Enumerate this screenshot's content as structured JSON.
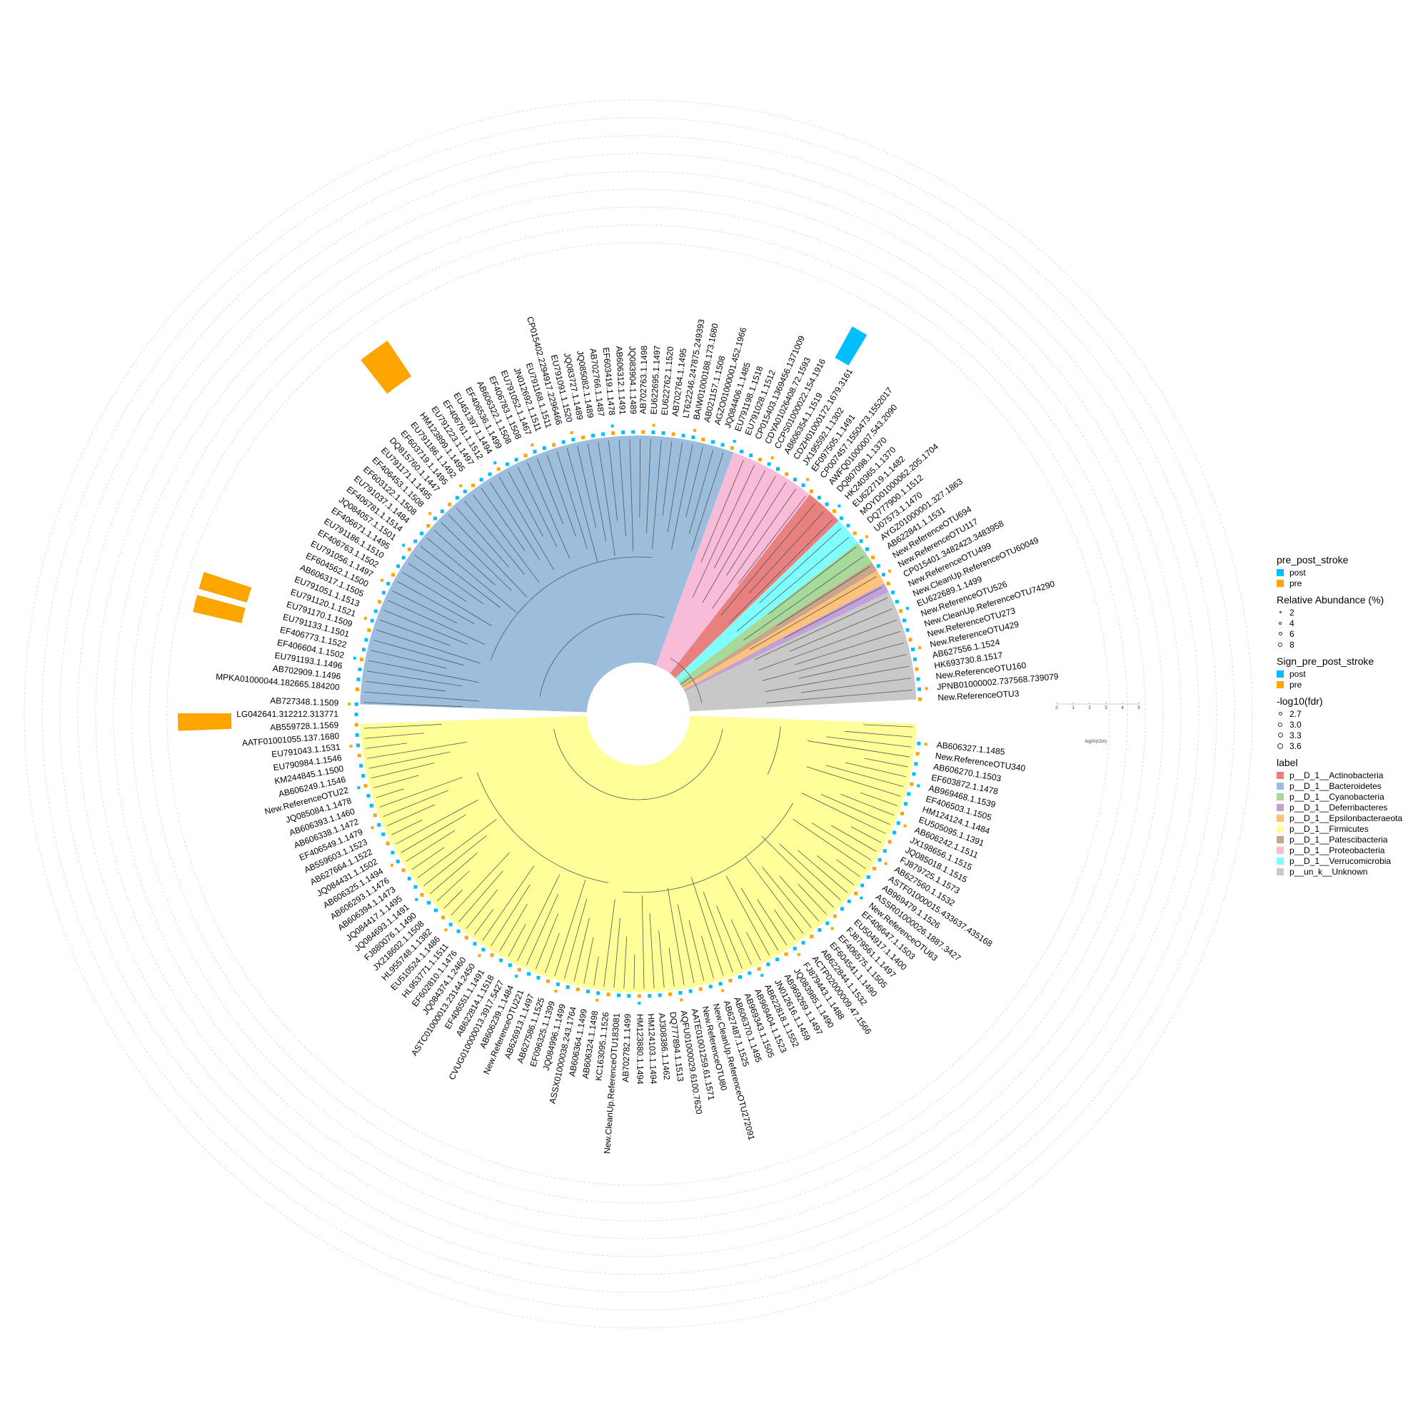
{
  "legend": {
    "group_title": "pre_post_stroke",
    "group_items": [
      {
        "label": "post",
        "color": "#00BFFF"
      },
      {
        "label": "pre",
        "color": "#FFA500"
      }
    ],
    "abundance_title": "Relative Abundance (%)",
    "abundance_items": [
      "2",
      "4",
      "6",
      "8"
    ],
    "sign_title": "Sign_pre_post_stroke",
    "sign_items": [
      {
        "label": "post",
        "color": "#00BFFF"
      },
      {
        "label": "pre",
        "color": "#FFA500"
      }
    ],
    "fdr_title": "-log10(fdr)",
    "fdr_items": [
      "2.7",
      "3.0",
      "3.3",
      "3.6"
    ],
    "label_title": "label",
    "label_items": [
      {
        "label": "p__D_1__Actinobacteria",
        "color": "#E88080"
      },
      {
        "label": "p__D_1__Bacteroidetes",
        "color": "#9CBEDC"
      },
      {
        "label": "p__D_1__Cyanobacteria",
        "color": "#A6D99A"
      },
      {
        "label": "p__D_1__Deferribacteres",
        "color": "#C3A1D6"
      },
      {
        "label": "p__D_1__Epsilonbacteraeota",
        "color": "#FFC27A"
      },
      {
        "label": "p__D_1__Firmicutes",
        "color": "#FFFF99"
      },
      {
        "label": "p__D_1__Patescibacteria",
        "color": "#C9A58A"
      },
      {
        "label": "p__D_1__Proteobacteria",
        "color": "#F8BBD8"
      },
      {
        "label": "p__D_1__Verrucomicrobia",
        "color": "#80FFFF"
      },
      {
        "label": "p__un_k__Unknown",
        "color": "#C8C8C8"
      }
    ]
  },
  "lda_axis": {
    "ticks": [
      "0",
      "1",
      "2",
      "3",
      "4",
      "5"
    ],
    "title": "log10(LDA)"
  },
  "tips_top": [
    "New.ReferenceOTU3",
    "JPNB01000002.737568.739079",
    "New.ReferenceOTU160",
    "HK693730.8.1517",
    "AB627556.1.1524",
    "New.ReferenceOTU429",
    "New.ReferenceOTU273",
    "New.CleanUp.ReferenceOTU74290",
    "New.ReferenceOTU526",
    "EU622689.1.1499",
    "New.CleanUp.ReferenceOTU60049",
    "New.ReferenceOTU499",
    "CP015401.3482423.3483958",
    "New.ReferenceOTU117",
    "New.ReferenceOTU694",
    "AB622841.1.1531",
    "AYGZ01000001.327.1863",
    "U07573.1.1470",
    "DQ777900.1.1512",
    "MOYD01000062.205.1704",
    "EU622719.1.1482",
    "HK240365.1.1370",
    "DQ807098.1.1370",
    "AWFQ01000007.543.2090",
    "CP007457.1550473.1552017",
    "EF097505.1.1491",
    "JX195592.1.1302",
    "CDZH01000172.1679.3161",
    "AB606354.1.1519",
    "CCPS01000022.154.1916",
    "CDYA01026408.72.1593",
    "CP015403.1369456.1371009",
    "EU791028.1.1512",
    "EU791198.1.1518",
    "JQ084406.1.1485",
    "AGZO01000001.452.1966",
    "AB021157.1.1508",
    "BAIW01000188.173.1680",
    "LT622246.247875.249393",
    "AB702764.1.1495",
    "EU622762.1.1520",
    "EU622695.1.1497",
    "AB702763.1.1498",
    "JQ083904.1.1489",
    "AB606312.1.1491",
    "EF603419.1.1478",
    "AB702766.1.1487",
    "JQ085082.1.1489",
    "JQ083727.1.1489",
    "EU791091.1.1520",
    "CP015402.2294917.2296466",
    "EU791168.1.1511",
    "JN012692.1.1511",
    "EU791052.1.1467",
    "EF406783.1.1508",
    "AB606322.1.1508",
    "EF406536.1.1499",
    "EU451397.1.1494",
    "EF406761.1.1512",
    "EU791223.1.1497",
    "HM123899.1.1495",
    "EU791186.1.1492",
    "EF603719.1.1495",
    "DQ815760.1.1447",
    "EU791171.1.1495",
    "EF406453.1.1508",
    "EF603122.1.1508",
    "EU791037.1.1484",
    "EF406781.1.1514",
    "JQ084057.1.1501",
    "EF406671.1.1495",
    "EU791186.1.1510",
    "EF406763.1.1502",
    "EU791056.1.1497",
    "EF604562.1.1500",
    "AB606317.1.1505",
    "EU791051.1.1513",
    "EU791120.1.1521",
    "EU791170.1.1509",
    "EU791133.1.1501",
    "EF406773.1.1522",
    "EF406604.1.1502",
    "EU791193.1.1496",
    "AB702909.1.1496",
    "MPKA01000044.182665.184200"
  ],
  "tips_bottom": [
    "AB727348.1.1509",
    "LG042641.312212.313771",
    "AB559728.1.1569",
    "AATF01001055.137.1680",
    "EU791043.1.1531",
    "EU790984.1.1546",
    "KM244845.1.1500",
    "AB606249.1.1546",
    "New.ReferenceOTU22",
    "JQ085084.1.1478",
    "AB606393.1.1460",
    "AB606338.1.1472",
    "EF406549.1.1479",
    "AB559603.1.1523",
    "AB627664.1.1522",
    "JQ084431.1.1502",
    "AB606325.1.1494",
    "AB606293.1.1476",
    "AB606394.1.1473",
    "JQ084417.1.1495",
    "JQ084693.1.1491",
    "FJ880076.1.1490",
    "JX218602.1.1508",
    "HL955748.1.1382",
    "EU510524.1.1486",
    "HL953771.1.1511",
    "EF602810.1.1476",
    "JQ084374.1.2460",
    "ASTC01000013.23144.2450",
    "EF406551.1.1491",
    "AB622814.1.1518",
    "CVUG010000013.3917.5427",
    "AB606239.1.1484",
    "New.ReferenceOTU221",
    "AB626913.1.1497",
    "AB627586.1.1525",
    "EF096325.1.1399",
    "JQ084996.1.1499",
    "ASSX01000038.243.1764",
    "AB606364.1.1499",
    "AB606324.1.1498",
    "KC163095.1.1526",
    "New.CleanUp.ReferenceOTU183081",
    "AB702782.1.1499",
    "HM123880.1.1494",
    "HM124103.1.1494",
    "AJ308386.1.1462",
    "DQ777894.1.1513",
    "AQFU01000029.6100.7620",
    "AATE01001259.61.1571",
    "New.ReferenceOTU80",
    "New.CleanUp.ReferenceOTU272091",
    "AB627487.1.1525",
    "AB606370.1.1495",
    "AB969343.1.1505",
    "AB969404.1.1523",
    "AB622818.1.1552",
    "JN012616.1.1459",
    "AB969269.1.1497",
    "JQ083985.1.1490",
    "FJ879443.1.1488",
    "ACTP02000009.47.1566",
    "AB622844.1.1532",
    "EF604541.1.1490",
    "EF406575.1.1505",
    "FJ879561.1.1497",
    "EU504917.1.1400",
    "EF406647.1.1503",
    "New.ReferenceOTU63",
    "ASSR01000026.1887.3427",
    "AB969479.1.1526",
    "ASTF01000015.433637.435168",
    "AB627560.1.1532",
    "FJ879725.1.1573",
    "JQ085018.1.1515",
    "JX198656.1.1515",
    "AB606242.1.1511",
    "EU505095.1.1391",
    "HM124124.1.1484",
    "EF406503.1.1505",
    "AB969468.1.1539",
    "EF603872.1.1478",
    "AB606270.1.1503",
    "New.ReferenceOTU340",
    "AB606327.1.1485"
  ]
}
